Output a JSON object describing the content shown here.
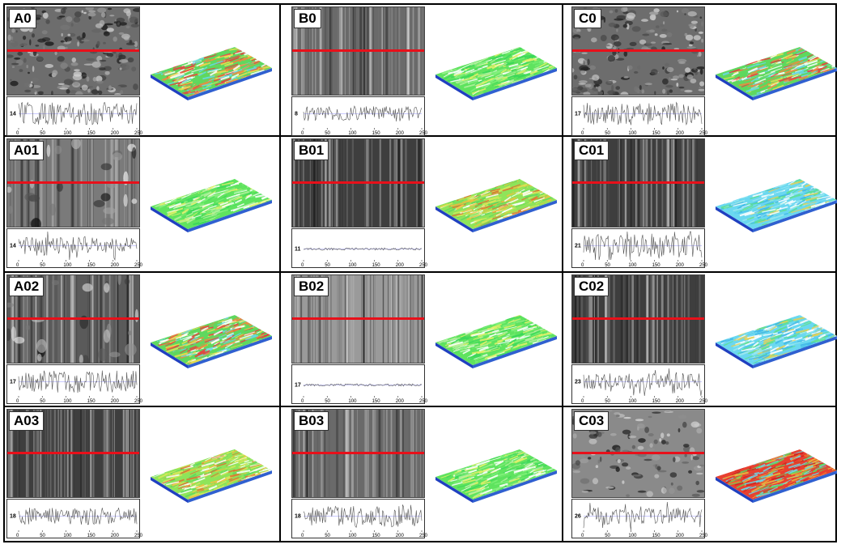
{
  "colors": {
    "border": "#000000",
    "scan_line": "#e8101a",
    "profile_line": "#555555",
    "mean_line": "#7a7aff"
  },
  "x_ticks": [
    "0",
    "50",
    "100",
    "150",
    "200",
    "250"
  ],
  "panels": [
    {
      "id": "A0",
      "profile_ylabel": "14",
      "texture": "porous",
      "surface": "mixed",
      "profile_kind": "high"
    },
    {
      "id": "B0",
      "profile_ylabel": "8",
      "texture": "streaks",
      "surface": "green",
      "profile_kind": "mid"
    },
    {
      "id": "C0",
      "profile_ylabel": "17",
      "texture": "porous",
      "surface": "mixed",
      "profile_kind": "high"
    },
    {
      "id": "A01",
      "profile_ylabel": "14",
      "texture": "streaks-light",
      "surface": "green",
      "profile_kind": "spiky"
    },
    {
      "id": "B01",
      "profile_ylabel": "11",
      "texture": "streaks-dark",
      "surface": "yellow",
      "profile_kind": "flat"
    },
    {
      "id": "C01",
      "profile_ylabel": "21",
      "texture": "streaks-dark",
      "surface": "cyan",
      "profile_kind": "spiky-high"
    },
    {
      "id": "A02",
      "profile_ylabel": "17",
      "texture": "streaks-patchy",
      "surface": "mixed",
      "profile_kind": "high"
    },
    {
      "id": "B02",
      "profile_ylabel": "17",
      "texture": "streaks-fine",
      "surface": "green",
      "profile_kind": "flat"
    },
    {
      "id": "C02",
      "profile_ylabel": "23",
      "texture": "streaks-dark",
      "surface": "cyan",
      "profile_kind": "spiky"
    },
    {
      "id": "A03",
      "profile_ylabel": "18",
      "texture": "streaks-dark",
      "surface": "yellow",
      "profile_kind": "dense"
    },
    {
      "id": "B03",
      "profile_ylabel": "18",
      "texture": "streaks",
      "surface": "green",
      "profile_kind": "dense-high"
    },
    {
      "id": "C03",
      "profile_ylabel": "26",
      "texture": "rough",
      "surface": "red",
      "profile_kind": "spiky"
    }
  ]
}
